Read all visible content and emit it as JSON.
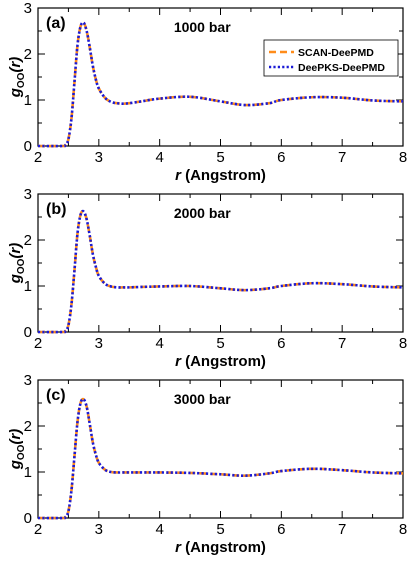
{
  "chart_data": [
    {
      "type": "line",
      "panel_label": "(a)",
      "annotation": "1000 bar",
      "xlabel_italic": "r",
      "xlabel_rest": " (Angstrom)",
      "ylabel_main": "g",
      "ylabel_sub": "OO",
      "ylabel_arg": "(r)",
      "xlim": [
        2,
        8
      ],
      "ylim": [
        0,
        3
      ],
      "xticks": [
        "2",
        "3",
        "4",
        "5",
        "6",
        "7",
        "8"
      ],
      "yticks": [
        "0",
        "1",
        "2",
        "3"
      ],
      "legend_position": "top-right",
      "series": [
        {
          "name": "SCAN-DeePMD",
          "color": "#ff8c1a",
          "style": "dashed",
          "x": [
            2.0,
            2.4,
            2.45,
            2.5,
            2.55,
            2.6,
            2.65,
            2.7,
            2.75,
            2.8,
            2.85,
            2.9,
            2.95,
            3.0,
            3.1,
            3.2,
            3.3,
            3.4,
            3.5,
            3.7,
            4.0,
            4.5,
            5.0,
            5.4,
            5.8,
            6.0,
            6.5,
            7.0,
            7.5,
            8.0
          ],
          "y": [
            0,
            0,
            0.02,
            0.15,
            0.6,
            1.4,
            2.2,
            2.6,
            2.68,
            2.5,
            2.15,
            1.75,
            1.45,
            1.25,
            1.05,
            0.96,
            0.93,
            0.92,
            0.93,
            0.97,
            1.03,
            1.07,
            0.97,
            0.89,
            0.93,
            1.0,
            1.06,
            1.05,
            0.99,
            0.97
          ]
        },
        {
          "name": "DeePKS-DeePMD",
          "color": "#1a1ad6",
          "style": "dotted",
          "x": [
            2.0,
            2.4,
            2.45,
            2.5,
            2.55,
            2.6,
            2.65,
            2.7,
            2.75,
            2.8,
            2.85,
            2.9,
            2.95,
            3.0,
            3.1,
            3.2,
            3.3,
            3.4,
            3.5,
            3.7,
            4.0,
            4.5,
            5.0,
            5.4,
            5.8,
            6.0,
            6.5,
            7.0,
            7.5,
            8.0
          ],
          "y": [
            0,
            0,
            0.02,
            0.15,
            0.6,
            1.4,
            2.2,
            2.6,
            2.68,
            2.5,
            2.15,
            1.75,
            1.45,
            1.25,
            1.05,
            0.96,
            0.93,
            0.92,
            0.93,
            0.97,
            1.03,
            1.07,
            0.97,
            0.89,
            0.93,
            1.0,
            1.06,
            1.05,
            0.99,
            0.97
          ]
        }
      ]
    },
    {
      "type": "line",
      "panel_label": "(b)",
      "annotation": "2000 bar",
      "xlabel_italic": "r",
      "xlabel_rest": " (Angstrom)",
      "ylabel_main": "g",
      "ylabel_sub": "OO",
      "ylabel_arg": "(r)",
      "xlim": [
        2,
        8
      ],
      "ylim": [
        0,
        3
      ],
      "xticks": [
        "2",
        "3",
        "4",
        "5",
        "6",
        "7",
        "8"
      ],
      "yticks": [
        "0",
        "1",
        "2",
        "3"
      ],
      "series": [
        {
          "name": "SCAN-DeePMD",
          "color": "#ff8c1a",
          "style": "dashed",
          "x": [
            2.0,
            2.4,
            2.45,
            2.5,
            2.55,
            2.6,
            2.65,
            2.7,
            2.75,
            2.8,
            2.85,
            2.9,
            2.95,
            3.0,
            3.1,
            3.2,
            3.3,
            3.4,
            3.5,
            3.7,
            4.0,
            4.5,
            5.0,
            5.4,
            5.8,
            6.0,
            6.5,
            7.0,
            7.5,
            8.0
          ],
          "y": [
            0,
            0,
            0.02,
            0.15,
            0.6,
            1.35,
            2.15,
            2.55,
            2.62,
            2.45,
            2.1,
            1.7,
            1.42,
            1.22,
            1.05,
            0.99,
            0.97,
            0.97,
            0.97,
            0.98,
            0.99,
            1.0,
            0.95,
            0.91,
            0.95,
            1.0,
            1.06,
            1.04,
            0.99,
            0.97
          ]
        },
        {
          "name": "DeePKS-DeePMD",
          "color": "#1a1ad6",
          "style": "dotted",
          "x": [
            2.0,
            2.4,
            2.45,
            2.5,
            2.55,
            2.6,
            2.65,
            2.7,
            2.75,
            2.8,
            2.85,
            2.9,
            2.95,
            3.0,
            3.1,
            3.2,
            3.3,
            3.4,
            3.5,
            3.7,
            4.0,
            4.5,
            5.0,
            5.4,
            5.8,
            6.0,
            6.5,
            7.0,
            7.5,
            8.0
          ],
          "y": [
            0,
            0,
            0.02,
            0.15,
            0.6,
            1.35,
            2.15,
            2.55,
            2.62,
            2.45,
            2.1,
            1.7,
            1.42,
            1.22,
            1.05,
            0.99,
            0.97,
            0.97,
            0.97,
            0.98,
            0.99,
            1.0,
            0.95,
            0.91,
            0.95,
            1.0,
            1.06,
            1.04,
            0.99,
            0.97
          ]
        }
      ]
    },
    {
      "type": "line",
      "panel_label": "(c)",
      "annotation": "3000 bar",
      "xlabel_italic": "r",
      "xlabel_rest": " (Angstrom)",
      "ylabel_main": "g",
      "ylabel_sub": "OO",
      "ylabel_arg": "(r)",
      "xlim": [
        2,
        8
      ],
      "ylim": [
        0,
        3
      ],
      "xticks": [
        "2",
        "3",
        "4",
        "5",
        "6",
        "7",
        "8"
      ],
      "yticks": [
        "0",
        "1",
        "2",
        "3"
      ],
      "series": [
        {
          "name": "SCAN-DeePMD",
          "color": "#ff8c1a",
          "style": "dashed",
          "x": [
            2.0,
            2.4,
            2.45,
            2.5,
            2.55,
            2.6,
            2.65,
            2.7,
            2.75,
            2.8,
            2.85,
            2.9,
            2.95,
            3.0,
            3.1,
            3.2,
            3.3,
            3.4,
            3.5,
            3.7,
            4.0,
            4.5,
            5.0,
            5.4,
            5.8,
            6.0,
            6.5,
            7.0,
            7.5,
            8.0
          ],
          "y": [
            0,
            0,
            0.02,
            0.15,
            0.6,
            1.35,
            2.1,
            2.5,
            2.58,
            2.42,
            2.05,
            1.65,
            1.38,
            1.2,
            1.05,
            1.0,
            0.99,
            0.99,
            0.99,
            0.99,
            0.99,
            0.98,
            0.95,
            0.92,
            0.97,
            1.02,
            1.07,
            1.04,
            0.99,
            0.97
          ]
        },
        {
          "name": "DeePKS-DeePMD",
          "color": "#1a1ad6",
          "style": "dotted",
          "x": [
            2.0,
            2.4,
            2.45,
            2.5,
            2.55,
            2.6,
            2.65,
            2.7,
            2.75,
            2.8,
            2.85,
            2.9,
            2.95,
            3.0,
            3.1,
            3.2,
            3.3,
            3.4,
            3.5,
            3.7,
            4.0,
            4.5,
            5.0,
            5.4,
            5.8,
            6.0,
            6.5,
            7.0,
            7.5,
            8.0
          ],
          "y": [
            0,
            0,
            0.02,
            0.15,
            0.6,
            1.35,
            2.1,
            2.5,
            2.58,
            2.42,
            2.05,
            1.65,
            1.38,
            1.2,
            1.05,
            1.0,
            0.99,
            0.99,
            0.99,
            0.99,
            0.99,
            0.98,
            0.95,
            0.92,
            0.97,
            1.02,
            1.07,
            1.04,
            0.99,
            0.97
          ]
        }
      ]
    }
  ]
}
